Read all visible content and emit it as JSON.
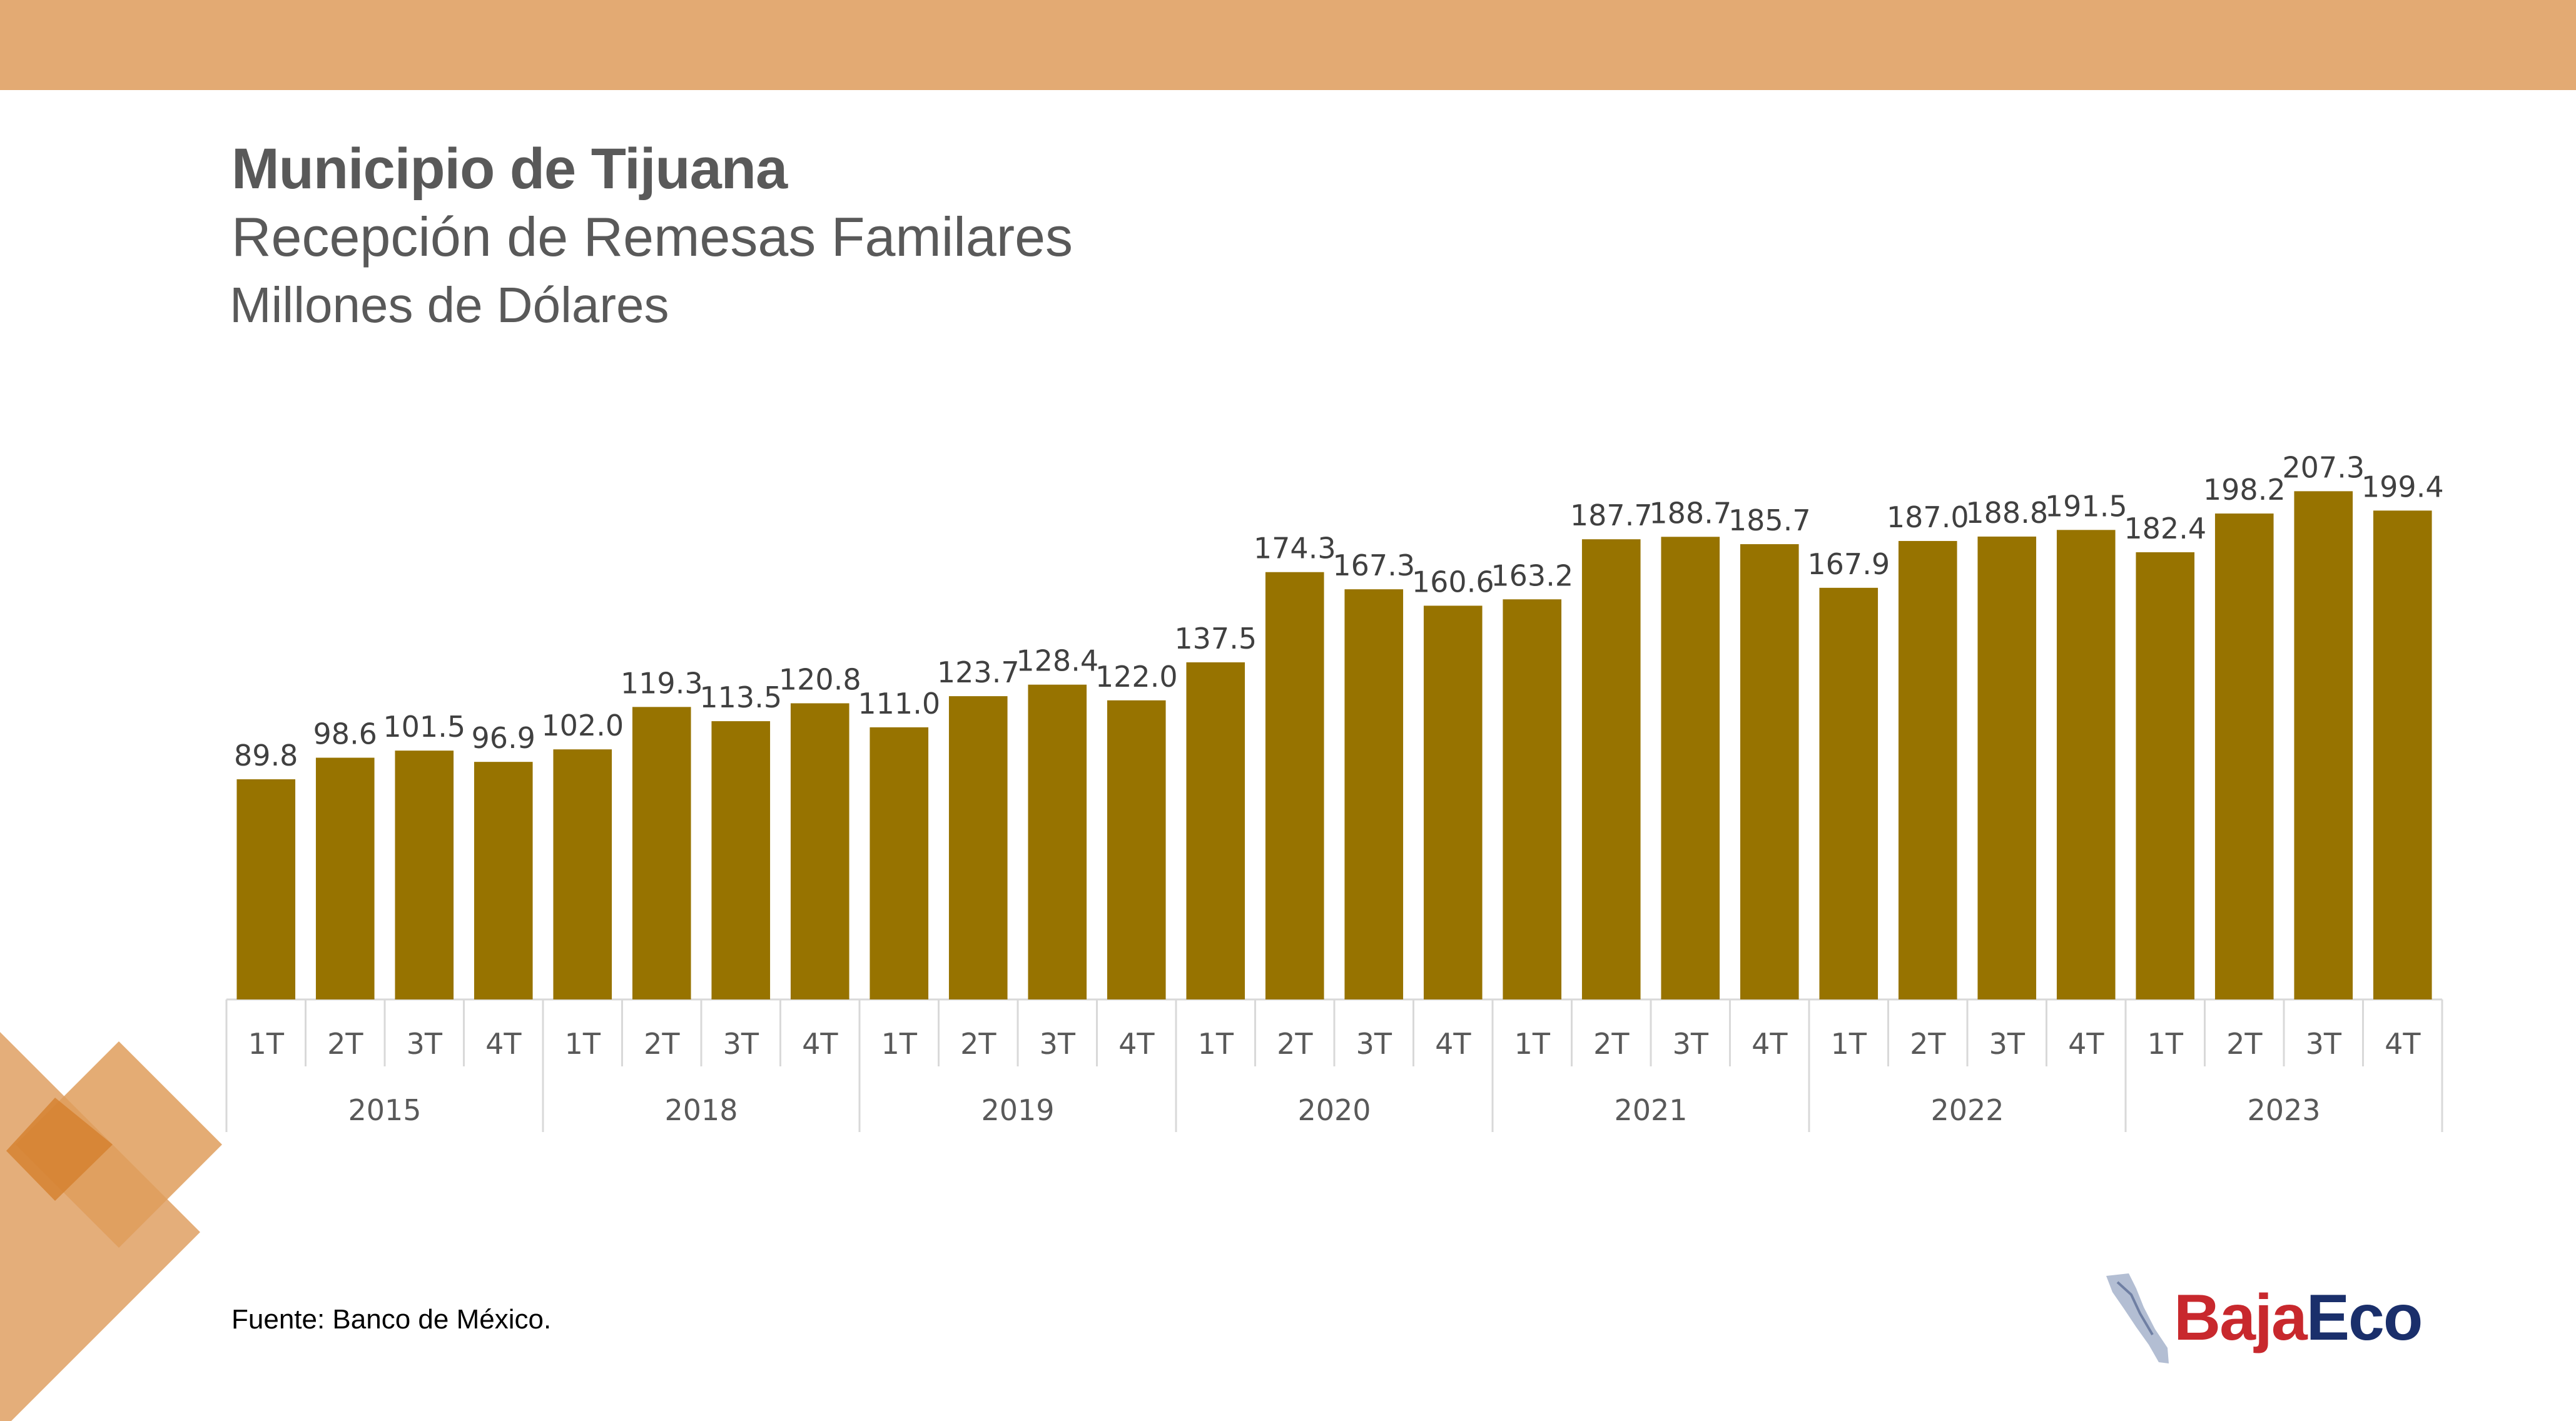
{
  "header": {
    "title": "Municipio de Tijuana",
    "subtitle": "Recepción de Remesas Familares",
    "unit": "Millones de Dólares"
  },
  "footer": {
    "source": "Fuente: Banco de México."
  },
  "logo": {
    "part1": "Baja",
    "part2": "Eco"
  },
  "colors": {
    "bar": "#977300",
    "band": "#e3aa73"
  },
  "chart_data": {
    "type": "bar",
    "groups": [
      {
        "year": "2015",
        "quarters": [
          "1T",
          "2T",
          "3T",
          "4T"
        ],
        "values": [
          89.8,
          98.6,
          101.5,
          96.9
        ]
      },
      {
        "year": "2018",
        "quarters": [
          "1T",
          "2T",
          "3T",
          "4T"
        ],
        "values": [
          102.0,
          119.3,
          113.5,
          120.8
        ]
      },
      {
        "year": "2019",
        "quarters": [
          "1T",
          "2T",
          "3T",
          "4T"
        ],
        "values": [
          111.0,
          123.7,
          128.4,
          122.0
        ]
      },
      {
        "year": "2020",
        "quarters": [
          "1T",
          "2T",
          "3T",
          "4T"
        ],
        "values": [
          137.5,
          174.3,
          167.3,
          160.6
        ]
      },
      {
        "year": "2021",
        "quarters": [
          "1T",
          "2T",
          "3T",
          "4T"
        ],
        "values": [
          163.2,
          187.7,
          188.7,
          185.7
        ]
      },
      {
        "year": "2022",
        "quarters": [
          "1T",
          "2T",
          "3T",
          "4T"
        ],
        "values": [
          167.9,
          187.0,
          188.8,
          191.5
        ]
      },
      {
        "year": "2023",
        "quarters": [
          "1T",
          "2T",
          "3T",
          "4T"
        ],
        "values": [
          182.4,
          198.2,
          207.3,
          199.4
        ]
      }
    ],
    "ylim": [
      0,
      220
    ],
    "data_labels": true,
    "grid": false,
    "legend": "none"
  }
}
